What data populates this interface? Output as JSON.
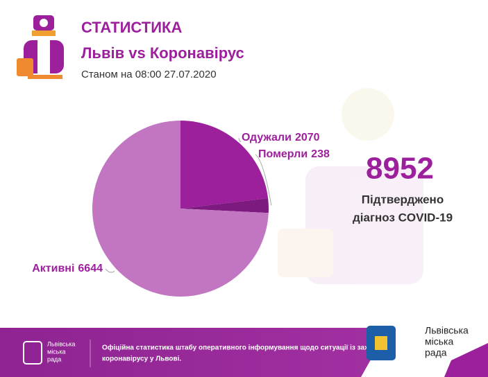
{
  "header": {
    "title": "СТАТИСТИКА",
    "subtitle": "Львів vs Коронавірус",
    "date": "Станом на 08:00 27.07.2020"
  },
  "chart_data": {
    "type": "pie",
    "categories": [
      "Одужали",
      "Померли",
      "Активні"
    ],
    "values": [
      2070,
      238,
      6644
    ],
    "colors": [
      "#9c1f9c",
      "#7d1a80",
      "#c276c2"
    ]
  },
  "summary": {
    "total": 8952,
    "caption": [
      "Підтверджено",
      "діагноз COVID-19"
    ]
  },
  "footer": {
    "left_logo": [
      "Львівська",
      "міська",
      "рада"
    ],
    "text": [
      "Офіційна статистика штабу оперативного інформування щодо ситуації із зах",
      "коронавірусу у Львові."
    ],
    "right_logo": [
      "Львівська",
      "міська",
      "рада"
    ]
  }
}
